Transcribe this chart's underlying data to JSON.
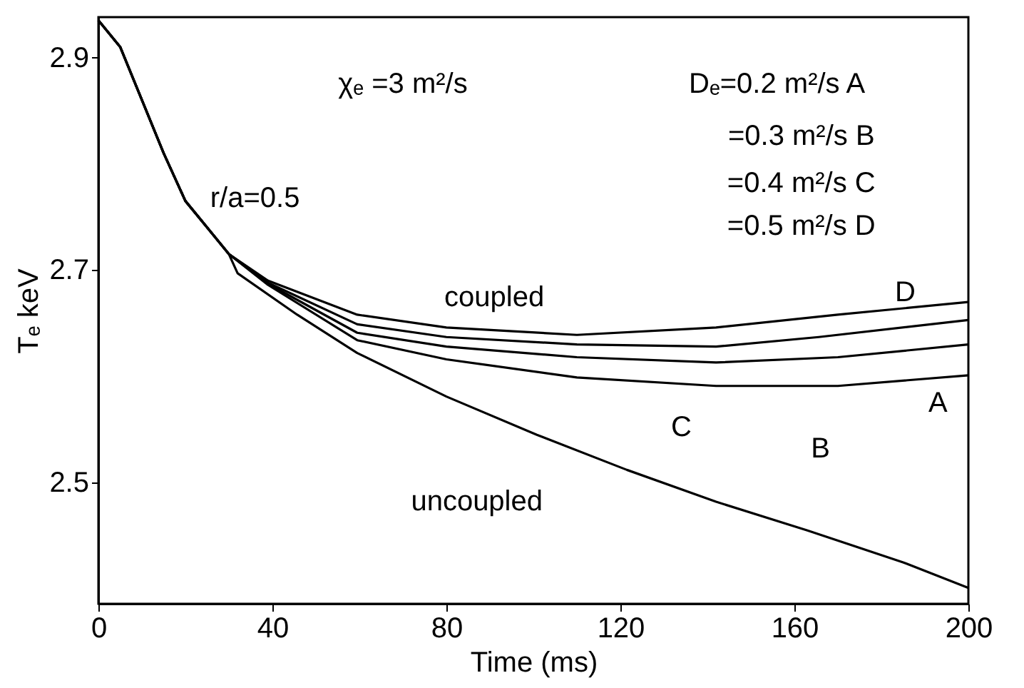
{
  "chart_data": {
    "type": "line",
    "xlabel": "Time (ms)",
    "ylabel": "Tₑ keV",
    "xlim": [
      0,
      200
    ],
    "ylim": [
      2.386,
      2.938
    ],
    "xticks": [
      0,
      40,
      80,
      120,
      160,
      200
    ],
    "yticks": [
      2.5,
      2.7,
      2.9
    ],
    "marker": "none",
    "line_style": "solid",
    "series": [
      {
        "color": "#000000",
        "x": [
          0,
          5,
          10,
          15,
          20,
          25,
          30,
          32,
          45.7,
          59.5,
          80,
          100.8,
          121.5,
          142,
          163,
          185,
          200
        ],
        "values": [
          2.935,
          2.91,
          2.86,
          2.81,
          2.765,
          2.74,
          2.715,
          2.697,
          2.658,
          2.622,
          2.581,
          2.545,
          2.512,
          2.482,
          2.455,
          2.425,
          2.401
        ]
      },
      {
        "color": "#000000",
        "x": [
          0,
          5,
          10,
          15,
          20,
          25,
          30,
          39,
          59.5,
          80,
          110,
          142,
          170,
          200
        ],
        "values": [
          2.935,
          2.91,
          2.86,
          2.81,
          2.765,
          2.74,
          2.715,
          2.686,
          2.634,
          2.616,
          2.599,
          2.591,
          2.591,
          2.601
        ]
      },
      {
        "color": "#000000",
        "x": [
          0,
          5,
          10,
          15,
          20,
          25,
          30,
          39,
          59.5,
          80,
          110,
          142,
          170,
          200
        ],
        "values": [
          2.935,
          2.91,
          2.86,
          2.81,
          2.765,
          2.74,
          2.715,
          2.687,
          2.641,
          2.628,
          2.618,
          2.613,
          2.618,
          2.63
        ]
      },
      {
        "color": "#000000",
        "x": [
          0,
          5,
          10,
          15,
          20,
          25,
          30,
          39,
          59.5,
          80,
          110,
          142,
          165.6,
          200
        ],
        "values": [
          2.935,
          2.91,
          2.86,
          2.81,
          2.765,
          2.74,
          2.715,
          2.688,
          2.649,
          2.637,
          2.63,
          2.628,
          2.637,
          2.653
        ]
      },
      {
        "color": "#000000",
        "x": [
          0,
          5,
          10,
          15,
          20,
          25,
          30,
          39,
          59.5,
          80,
          110,
          142,
          170,
          200
        ],
        "values": [
          2.935,
          2.91,
          2.86,
          2.81,
          2.765,
          2.74,
          2.715,
          2.69,
          2.658,
          2.646,
          2.639,
          2.646,
          2.658,
          2.67
        ]
      }
    ],
    "annotations": [
      "χₑ =3 m²/s",
      "Dₑ=0.2 m²/s   A",
      "=0.3 m²/s   B",
      "=0.4 m²/s   C",
      "=0.5 m²/s   D",
      "r/a=0.5",
      "coupled",
      "uncoupled",
      "D",
      "A",
      "C",
      "B"
    ]
  }
}
